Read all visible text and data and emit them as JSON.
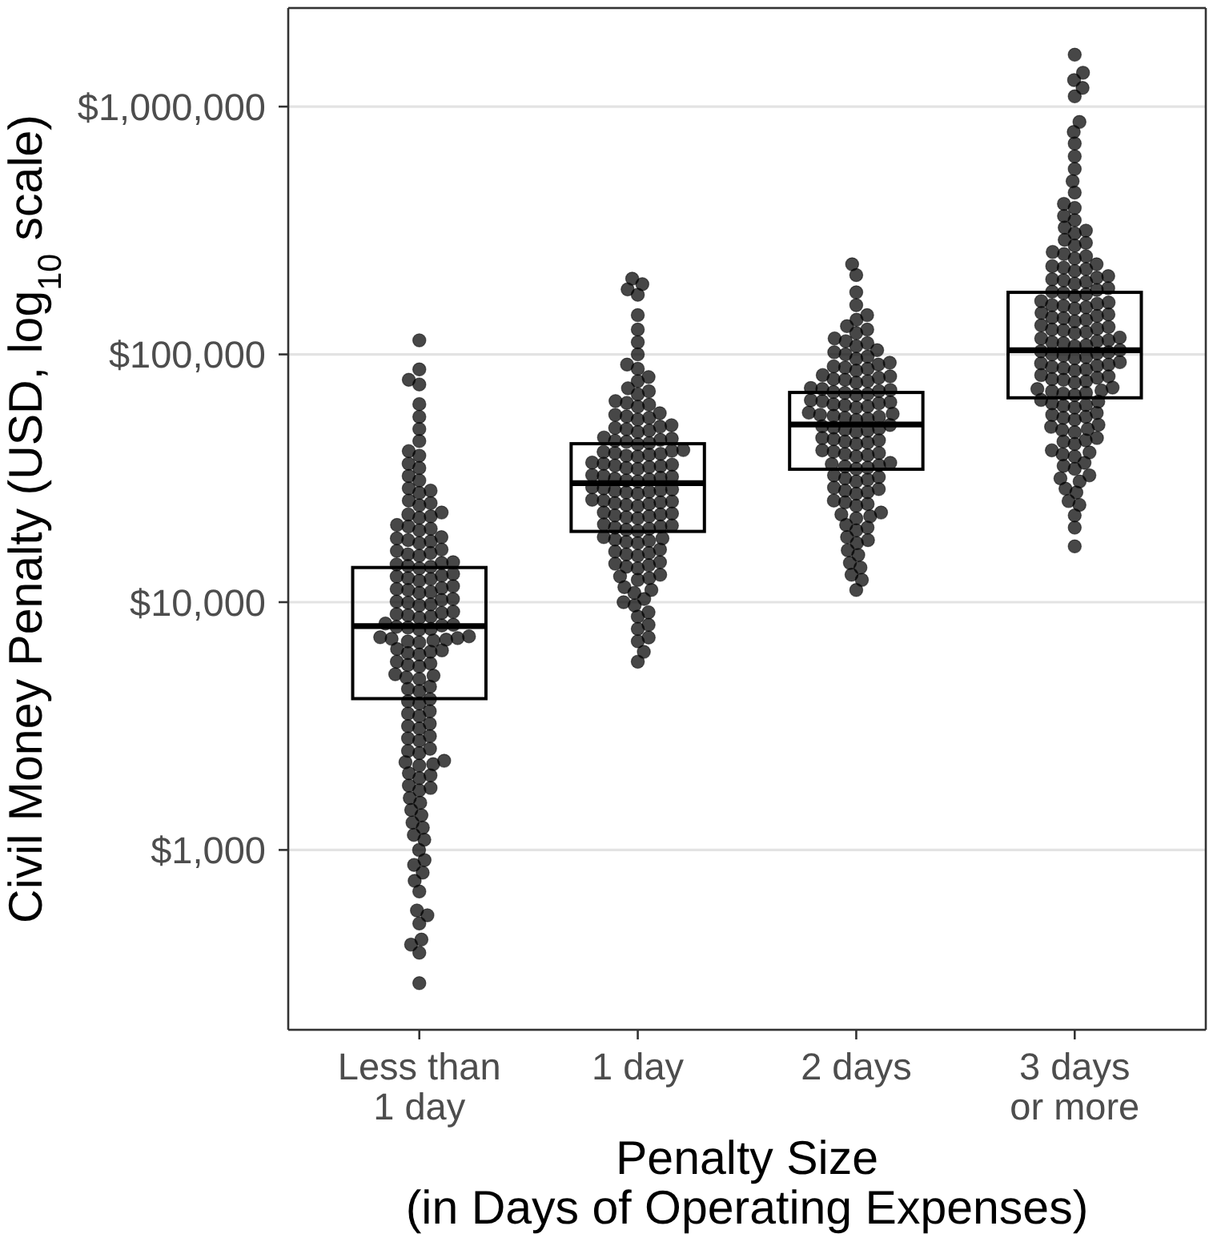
{
  "chart_data": {
    "type": "box",
    "xlabel": "Penalty Size\n(in Days of Operating Expenses)",
    "ylabel": "Civil Money Penalty (USD, log$_{10}$ scale)",
    "categories": [
      "Less than\n1 day",
      "1 day",
      "2 days",
      "3 days\nor more"
    ],
    "log": true,
    "ylim": [
      188,
      2500000
    ],
    "yticks": [
      {
        "value": 1000,
        "label": "$1,000"
      },
      {
        "value": 10000,
        "label": "$10,000"
      },
      {
        "value": 100000,
        "label": "$100,000"
      },
      {
        "value": 1000000,
        "label": "$1,000,000"
      }
    ],
    "grid": "y",
    "marker": "circle",
    "boxes": [
      {
        "low": 4080,
        "q1": 4080,
        "median": 8000,
        "q3": 13800,
        "high": 13800
      },
      {
        "low": 19300,
        "q1": 19300,
        "median": 30200,
        "q3": 43600,
        "high": 43600
      },
      {
        "low": 34400,
        "q1": 34400,
        "median": 52100,
        "q3": 70200,
        "high": 70200
      },
      {
        "low": 66800,
        "q1": 66800,
        "median": 104000,
        "q3": 178000,
        "high": 178000
      }
    ],
    "series": [
      {
        "type": "scatter",
        "color": "#000000",
        "x": [
          "Less than\n1 day",
          "Less than\n1 day",
          "Less than\n1 day",
          "Less than\n1 day",
          "Less than\n1 day",
          "Less than\n1 day",
          "Less than\n1 day",
          "Less than\n1 day",
          "Less than\n1 day",
          "Less than\n1 day",
          "Less than\n1 day",
          "Less than\n1 day",
          "Less than\n1 day",
          "Less than\n1 day",
          "Less than\n1 day",
          "Less than\n1 day",
          "Less than\n1 day",
          "Less than\n1 day",
          "Less than\n1 day",
          "Less than\n1 day",
          "Less than\n1 day",
          "Less than\n1 day",
          "Less than\n1 day",
          "Less than\n1 day",
          "Less than\n1 day",
          "Less than\n1 day",
          "Less than\n1 day",
          "Less than\n1 day",
          "Less than\n1 day",
          "Less than\n1 day",
          "Less than\n1 day",
          "Less than\n1 day",
          "Less than\n1 day",
          "Less than\n1 day",
          "Less than\n1 day",
          "Less than\n1 day",
          "Less than\n1 day",
          "Less than\n1 day",
          "Less than\n1 day",
          "Less than\n1 day",
          "Less than\n1 day",
          "Less than\n1 day",
          "Less than\n1 day",
          "Less than\n1 day",
          "Less than\n1 day",
          "Less than\n1 day",
          "Less than\n1 day",
          "Less than\n1 day",
          "Less than\n1 day",
          "Less than\n1 day",
          "Less than\n1 day",
          "Less than\n1 day",
          "Less than\n1 day",
          "Less than\n1 day",
          "Less than\n1 day",
          "Less than\n1 day",
          "Less than\n1 day",
          "Less than\n1 day",
          "Less than\n1 day",
          "Less than\n1 day",
          "Less than\n1 day",
          "Less than\n1 day",
          "Less than\n1 day",
          "Less than\n1 day",
          "Less than\n1 day",
          "Less than\n1 day",
          "Less than\n1 day",
          "Less than\n1 day",
          "Less than\n1 day",
          "Less than\n1 day",
          "Less than\n1 day",
          "Less than\n1 day",
          "Less than\n1 day",
          "Less than\n1 day",
          "Less than\n1 day",
          "Less than\n1 day",
          "Less than\n1 day",
          "Less than\n1 day",
          "Less than\n1 day",
          "Less than\n1 day",
          "Less than\n1 day",
          "Less than\n1 day",
          "Less than\n1 day",
          "Less than\n1 day",
          "Less than\n1 day",
          "Less than\n1 day",
          "Less than\n1 day",
          "Less than\n1 day",
          "Less than\n1 day",
          "Less than\n1 day",
          "Less than\n1 day",
          "Less than\n1 day",
          "Less than\n1 day",
          "Less than\n1 day",
          "Less than\n1 day",
          "Less than\n1 day",
          "Less than\n1 day",
          "Less than\n1 day",
          "Less than\n1 day",
          "Less than\n1 day",
          "Less than\n1 day",
          "Less than\n1 day",
          "Less than\n1 day",
          "Less than\n1 day",
          "Less than\n1 day",
          "Less than\n1 day",
          "Less than\n1 day",
          "Less than\n1 day",
          "Less than\n1 day",
          "Less than\n1 day",
          "Less than\n1 day",
          "Less than\n1 day",
          "Less than\n1 day",
          "Less than\n1 day",
          "Less than\n1 day",
          "Less than\n1 day",
          "Less than\n1 day",
          "Less than\n1 day",
          "Less than\n1 day",
          "Less than\n1 day",
          "Less than\n1 day",
          "Less than\n1 day",
          "Less than\n1 day",
          "Less than\n1 day",
          "Less than\n1 day",
          "Less than\n1 day",
          "Less than\n1 day",
          "Less than\n1 day",
          "Less than\n1 day",
          "Less than\n1 day",
          "Less than\n1 day",
          "Less than\n1 day",
          "Less than\n1 day",
          "Less than\n1 day",
          "Less than\n1 day",
          "Less than\n1 day",
          "Less than\n1 day",
          "Less than\n1 day",
          "Less than\n1 day",
          "Less than\n1 day",
          "Less than\n1 day",
          "Less than\n1 day",
          "Less than\n1 day",
          "Less than\n1 day",
          "Less than\n1 day"
        ],
        "values": [
          114000,
          87000,
          79000,
          75600,
          63000,
          56000,
          50000,
          44700,
          39000,
          40700,
          34800,
          36200,
          31000,
          32300,
          27600,
          28200,
          28800,
          24600,
          25100,
          25700,
          21900,
          22200,
          22600,
          23000,
          19500,
          19800,
          20200,
          20500,
          17300,
          17600,
          17800,
          18100,
          18300,
          15400,
          15600,
          15800,
          16100,
          16300,
          13700,
          13900,
          14000,
          14200,
          14400,
          14500,
          12200,
          12400,
          12500,
          12700,
          12800,
          13000,
          10900,
          11000,
          11200,
          11300,
          11400,
          11600,
          9700,
          9800,
          9950,
          10050,
          10200,
          10300,
          8650,
          8750,
          8850,
          8950,
          9050,
          9150,
          7750,
          7800,
          7900,
          7950,
          8050,
          8100,
          8200,
          6880,
          6940,
          7000,
          7060,
          7110,
          7160,
          7220,
          7280,
          6150,
          6230,
          6310,
          6390,
          6470,
          5500,
          5580,
          5660,
          5750,
          4900,
          4970,
          5050,
          5120,
          4380,
          4470,
          4560,
          3900,
          3980,
          4060,
          3470,
          3550,
          3630,
          3090,
          3160,
          3230,
          2760,
          2820,
          2880,
          2460,
          2510,
          2560,
          2190,
          2220,
          2260,
          2290,
          1950,
          2000,
          2040,
          1740,
          1780,
          1820,
          1550,
          1620,
          1380,
          1450,
          1230,
          1290,
          1100,
          1150,
          1000,
          910,
          870,
          810,
          750,
          680,
          570,
          545,
          505,
          435,
          415,
          385,
          290
        ]
      },
      {
        "type": "scatter",
        "color": "#000000",
        "x": [
          "1 day",
          "1 day",
          "1 day",
          "1 day",
          "1 day",
          "1 day",
          "1 day",
          "1 day",
          "1 day",
          "1 day",
          "1 day",
          "1 day",
          "1 day",
          "1 day",
          "1 day",
          "1 day",
          "1 day",
          "1 day",
          "1 day",
          "1 day",
          "1 day",
          "1 day",
          "1 day",
          "1 day",
          "1 day",
          "1 day",
          "1 day",
          "1 day",
          "1 day",
          "1 day",
          "1 day",
          "1 day",
          "1 day",
          "1 day",
          "1 day",
          "1 day",
          "1 day",
          "1 day",
          "1 day",
          "1 day",
          "1 day",
          "1 day",
          "1 day",
          "1 day",
          "1 day",
          "1 day",
          "1 day",
          "1 day",
          "1 day",
          "1 day",
          "1 day",
          "1 day",
          "1 day",
          "1 day",
          "1 day",
          "1 day",
          "1 day",
          "1 day",
          "1 day",
          "1 day",
          "1 day",
          "1 day",
          "1 day",
          "1 day",
          "1 day",
          "1 day",
          "1 day",
          "1 day",
          "1 day",
          "1 day",
          "1 day",
          "1 day",
          "1 day",
          "1 day",
          "1 day",
          "1 day",
          "1 day",
          "1 day",
          "1 day",
          "1 day",
          "1 day",
          "1 day",
          "1 day",
          "1 day",
          "1 day",
          "1 day",
          "1 day",
          "1 day",
          "1 day",
          "1 day",
          "1 day",
          "1 day",
          "1 day",
          "1 day",
          "1 day",
          "1 day",
          "1 day",
          "1 day",
          "1 day",
          "1 day",
          "1 day",
          "1 day",
          "1 day",
          "1 day",
          "1 day",
          "1 day",
          "1 day",
          "1 day",
          "1 day",
          "1 day",
          "1 day",
          "1 day",
          "1 day",
          "1 day",
          "1 day",
          "1 day",
          "1 day",
          "1 day",
          "1 day",
          "1 day",
          "1 day",
          "1 day",
          "1 day",
          "1 day",
          "1 day"
        ],
        "values": [
          202000,
          192000,
          183000,
          174000,
          144000,
          126000,
          112000,
          100000,
          87500,
          91000,
          78000,
          81000,
          69000,
          71000,
          73000,
          61500,
          62700,
          63700,
          64800,
          54600,
          55500,
          56200,
          57000,
          57900,
          48600,
          49300,
          49900,
          50500,
          51100,
          51800,
          43400,
          43900,
          44400,
          44800,
          45200,
          45700,
          46200,
          38700,
          39000,
          39400,
          39700,
          40000,
          40400,
          40800,
          41100,
          34500,
          34800,
          35100,
          35400,
          35600,
          35900,
          36200,
          36600,
          30700,
          31000,
          31300,
          31500,
          31800,
          32100,
          32300,
          32600,
          27400,
          27700,
          27900,
          28100,
          28300,
          28500,
          28800,
          29100,
          24400,
          24700,
          24900,
          25100,
          25300,
          25500,
          25700,
          25900,
          21800,
          22000,
          22200,
          22400,
          22600,
          22800,
          23000,
          19400,
          19600,
          19800,
          20000,
          20200,
          20400,
          20600,
          17300,
          17500,
          17700,
          17900,
          18100,
          18300,
          15400,
          15600,
          15800,
          16000,
          16300,
          13700,
          13900,
          14100,
          14300,
          14500,
          12300,
          12500,
          12700,
          12900,
          10900,
          11200,
          11500,
          9700,
          10000,
          10300,
          8750,
          9100,
          7800,
          8100,
          6950,
          7200,
          6300,
          5750
        ]
      },
      {
        "type": "scatter",
        "color": "#000000",
        "x": [
          "2 days",
          "2 days",
          "2 days",
          "2 days",
          "2 days",
          "2 days",
          "2 days",
          "2 days",
          "2 days",
          "2 days",
          "2 days",
          "2 days",
          "2 days",
          "2 days",
          "2 days",
          "2 days",
          "2 days",
          "2 days",
          "2 days",
          "2 days",
          "2 days",
          "2 days",
          "2 days",
          "2 days",
          "2 days",
          "2 days",
          "2 days",
          "2 days",
          "2 days",
          "2 days",
          "2 days",
          "2 days",
          "2 days",
          "2 days",
          "2 days",
          "2 days",
          "2 days",
          "2 days",
          "2 days",
          "2 days",
          "2 days",
          "2 days",
          "2 days",
          "2 days",
          "2 days",
          "2 days",
          "2 days",
          "2 days",
          "2 days",
          "2 days",
          "2 days",
          "2 days",
          "2 days",
          "2 days",
          "2 days",
          "2 days",
          "2 days",
          "2 days",
          "2 days",
          "2 days",
          "2 days",
          "2 days",
          "2 days",
          "2 days",
          "2 days",
          "2 days",
          "2 days",
          "2 days",
          "2 days",
          "2 days",
          "2 days",
          "2 days",
          "2 days",
          "2 days",
          "2 days",
          "2 days",
          "2 days",
          "2 days",
          "2 days",
          "2 days",
          "2 days",
          "2 days",
          "2 days",
          "2 days",
          "2 days",
          "2 days",
          "2 days",
          "2 days",
          "2 days",
          "2 days",
          "2 days",
          "2 days",
          "2 days",
          "2 days",
          "2 days",
          "2 days",
          "2 days",
          "2 days",
          "2 days",
          "2 days",
          "2 days",
          "2 days",
          "2 days",
          "2 days",
          "2 days",
          "2 days",
          "2 days",
          "2 days",
          "2 days",
          "2 days",
          "2 days"
        ],
        "values": [
          231000,
          209000,
          178000,
          158000,
          138000,
          144000,
          122000,
          126000,
          130000,
          108000,
          111000,
          113000,
          116000,
          96000,
          98000,
          100000,
          102000,
          104000,
          86000,
          87500,
          88500,
          89500,
          91000,
          92500,
          77000,
          78000,
          79000,
          79500,
          80500,
          81500,
          82500,
          68500,
          69200,
          69900,
          70500,
          71100,
          71800,
          72500,
          73200,
          61000,
          61700,
          62300,
          62900,
          63500,
          64100,
          64700,
          65300,
          54400,
          55000,
          55500,
          56000,
          56500,
          57000,
          57600,
          58200,
          48600,
          49200,
          49700,
          50200,
          50700,
          51300,
          51900,
          43500,
          44000,
          44500,
          45000,
          45500,
          46000,
          38700,
          39200,
          39600,
          40000,
          40500,
          41000,
          34500,
          34900,
          35300,
          35700,
          36100,
          36500,
          30700,
          31200,
          31600,
          32000,
          32500,
          27400,
          27800,
          28200,
          28600,
          29000,
          24500,
          24900,
          25300,
          25700,
          21800,
          22200,
          22600,
          23000,
          19500,
          20000,
          20500,
          17300,
          17800,
          18300,
          15500,
          16200,
          13800,
          14400,
          12300,
          12900,
          11200
        ]
      },
      {
        "type": "scatter",
        "color": "#000000",
        "x": [
          "3 days\nor more",
          "3 days\nor more",
          "3 days\nor more",
          "3 days\nor more",
          "3 days\nor more",
          "3 days\nor more",
          "3 days\nor more",
          "3 days\nor more",
          "3 days\nor more",
          "3 days\nor more",
          "3 days\nor more",
          "3 days\nor more",
          "3 days\nor more",
          "3 days\nor more",
          "3 days\nor more",
          "3 days\nor more",
          "3 days\nor more",
          "3 days\nor more",
          "3 days\nor more",
          "3 days\nor more",
          "3 days\nor more",
          "3 days\nor more",
          "3 days\nor more",
          "3 days\nor more",
          "3 days\nor more",
          "3 days\nor more",
          "3 days\nor more",
          "3 days\nor more",
          "3 days\nor more",
          "3 days\nor more",
          "3 days\nor more",
          "3 days\nor more",
          "3 days\nor more",
          "3 days\nor more",
          "3 days\nor more",
          "3 days\nor more",
          "3 days\nor more",
          "3 days\nor more",
          "3 days\nor more",
          "3 days\nor more",
          "3 days\nor more",
          "3 days\nor more",
          "3 days\nor more",
          "3 days\nor more",
          "3 days\nor more",
          "3 days\nor more",
          "3 days\nor more",
          "3 days\nor more",
          "3 days\nor more",
          "3 days\nor more",
          "3 days\nor more",
          "3 days\nor more",
          "3 days\nor more",
          "3 days\nor more",
          "3 days\nor more",
          "3 days\nor more",
          "3 days\nor more",
          "3 days\nor more",
          "3 days\nor more",
          "3 days\nor more",
          "3 days\nor more",
          "3 days\nor more",
          "3 days\nor more",
          "3 days\nor more",
          "3 days\nor more",
          "3 days\nor more",
          "3 days\nor more",
          "3 days\nor more",
          "3 days\nor more",
          "3 days\nor more",
          "3 days\nor more",
          "3 days\nor more",
          "3 days\nor more",
          "3 days\nor more",
          "3 days\nor more",
          "3 days\nor more",
          "3 days\nor more",
          "3 days\nor more",
          "3 days\nor more",
          "3 days\nor more",
          "3 days\nor more",
          "3 days\nor more",
          "3 days\nor more",
          "3 days\nor more",
          "3 days\nor more",
          "3 days\nor more",
          "3 days\nor more",
          "3 days\nor more",
          "3 days\nor more",
          "3 days\nor more",
          "3 days\nor more",
          "3 days\nor more",
          "3 days\nor more",
          "3 days\nor more",
          "3 days\nor more",
          "3 days\nor more",
          "3 days\nor more",
          "3 days\nor more",
          "3 days\nor more",
          "3 days\nor more",
          "3 days\nor more",
          "3 days\nor more",
          "3 days\nor more",
          "3 days\nor more",
          "3 days\nor more",
          "3 days\nor more",
          "3 days\nor more",
          "3 days\nor more",
          "3 days\nor more",
          "3 days\nor more",
          "3 days\nor more",
          "3 days\nor more",
          "3 days\nor more",
          "3 days\nor more",
          "3 days\nor more",
          "3 days\nor more",
          "3 days\nor more",
          "3 days\nor more",
          "3 days\nor more",
          "3 days\nor more",
          "3 days\nor more",
          "3 days\nor more",
          "3 days\nor more",
          "3 days\nor more",
          "3 days\nor more",
          "3 days\nor more",
          "3 days\nor more",
          "3 days\nor more",
          "3 days\nor more",
          "3 days\nor more",
          "3 days\nor more",
          "3 days\nor more",
          "3 days\nor more",
          "3 days\nor more",
          "3 days\nor more",
          "3 days\nor more",
          "3 days\nor more",
          "3 days\nor more",
          "3 days\nor more"
        ],
        "values": [
          1620000,
          1370000,
          1280000,
          1190000,
          1100000,
          867000,
          790000,
          710000,
          630000,
          560000,
          500000,
          450000,
          390000,
          405000,
          348000,
          362000,
          308000,
          316000,
          325000,
          275000,
          282000,
          290000,
          244000,
          249000,
          254000,
          259000,
          217000,
          221000,
          224000,
          227000,
          231000,
          193000,
          196000,
          199000,
          201000,
          204000,
          207000,
          172000,
          175000,
          177000,
          179000,
          182000,
          185000,
          153000,
          155000,
          157000,
          158000,
          160000,
          162000,
          164000,
          136000,
          138000,
          140000,
          141000,
          143000,
          145000,
          147000,
          122000,
          123000,
          125000,
          126000,
          127000,
          129000,
          131000,
          108000,
          109000,
          111000,
          112000,
          113000,
          114000,
          116000,
          117000,
          96500,
          97500,
          99000,
          100000,
          101000,
          102000,
          103000,
          104000,
          86000,
          87000,
          88000,
          89000,
          90000,
          91000,
          92000,
          93000,
          77000,
          78000,
          79000,
          79500,
          80500,
          81500,
          82500,
          68500,
          69500,
          70000,
          71000,
          71500,
          72500,
          73500,
          61000,
          62000,
          62500,
          63500,
          64500,
          65500,
          54500,
          55500,
          56000,
          57000,
          58000,
          48500,
          49500,
          50000,
          51000,
          52000,
          43500,
          44500,
          45000,
          46000,
          38700,
          39500,
          40200,
          41000,
          34500,
          35500,
          36500,
          30700,
          31600,
          32500,
          27700,
          28700,
          24700,
          25600,
          22400,
          20000,
          16800
        ]
      }
    ]
  }
}
